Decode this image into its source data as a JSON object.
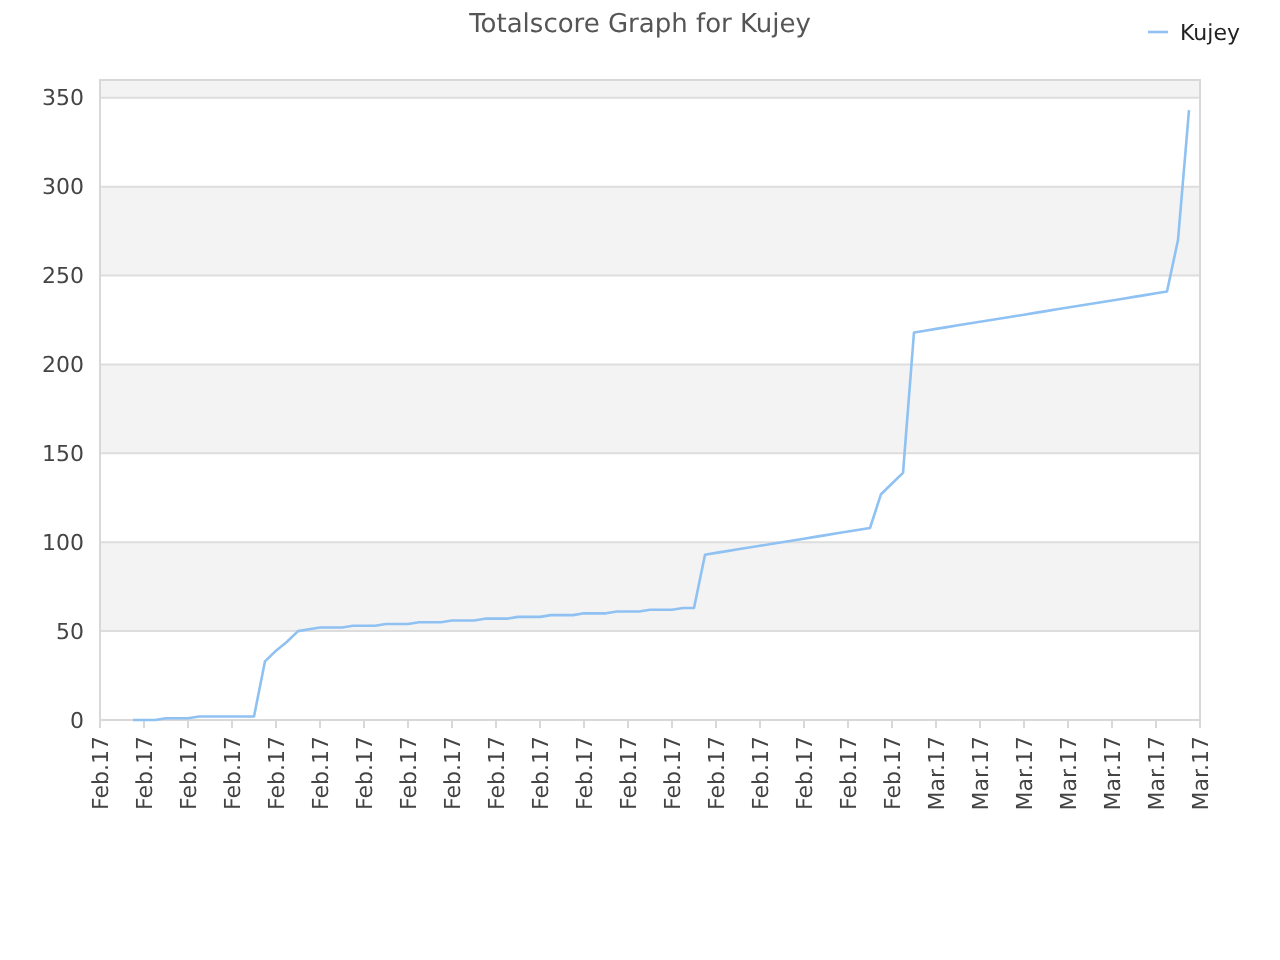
{
  "chart_data": {
    "type": "line",
    "title": "Totalscore Graph for Kujey",
    "categories": [
      "Feb.17",
      null,
      null,
      null,
      "Feb.17",
      null,
      null,
      null,
      "Feb.17",
      null,
      null,
      null,
      "Feb.17",
      null,
      null,
      null,
      "Feb.17",
      null,
      null,
      null,
      "Feb.17",
      null,
      null,
      null,
      "Feb.17",
      null,
      null,
      null,
      "Feb.17",
      null,
      null,
      null,
      "Feb.17",
      null,
      null,
      null,
      "Feb.17",
      null,
      null,
      null,
      "Feb.17",
      null,
      null,
      null,
      "Feb.17",
      null,
      null,
      null,
      "Feb.17",
      null,
      null,
      null,
      "Feb.17",
      null,
      null,
      null,
      "Feb.17",
      null,
      null,
      null,
      "Feb.17",
      null,
      null,
      null,
      "Feb.17",
      null,
      null,
      null,
      "Feb.17",
      null,
      null,
      null,
      "Feb.17",
      null,
      null,
      null,
      "Mar.17",
      null,
      null,
      null,
      "Mar.17",
      null,
      null,
      null,
      "Mar.17",
      null,
      null,
      null,
      "Mar.17",
      null,
      null,
      null,
      "Mar.17",
      null,
      null,
      null,
      "Mar.17",
      null,
      null,
      null,
      "Mar.17"
    ],
    "ylim": [
      0,
      360
    ],
    "yticks": [
      0,
      50,
      100,
      150,
      200,
      250,
      300,
      350
    ],
    "grid": "y",
    "legend": "top right",
    "marker": "none",
    "line_style": "solid",
    "series": [
      {
        "name": "Kujey",
        "color": "#8fc1f3",
        "values": [
          null,
          null,
          null,
          0,
          0,
          0,
          1,
          1,
          1,
          2,
          2,
          2,
          2,
          2,
          2,
          33,
          39,
          44,
          50,
          51,
          52,
          52,
          52,
          53,
          53,
          53,
          54,
          54,
          54,
          55,
          55,
          55,
          56,
          56,
          56,
          57,
          57,
          57,
          58,
          58,
          58,
          59,
          59,
          59,
          60,
          60,
          60,
          61,
          61,
          61,
          62,
          62,
          62,
          63,
          63,
          93,
          94,
          95,
          96,
          97,
          98,
          99,
          100,
          101,
          102,
          103,
          104,
          105,
          106,
          107,
          108,
          127,
          133,
          139,
          218,
          219,
          220,
          221,
          222,
          223,
          224,
          225,
          226,
          227,
          228,
          229,
          230,
          231,
          232,
          233,
          234,
          235,
          236,
          237,
          238,
          239,
          240,
          241,
          270,
          343,
          null
        ]
      }
    ]
  }
}
